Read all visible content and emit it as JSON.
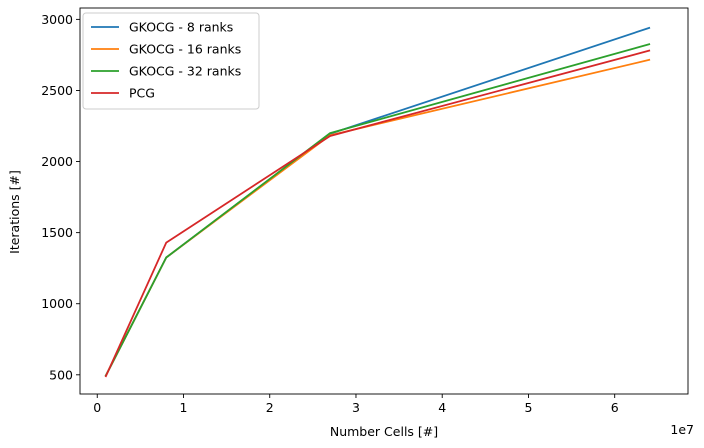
{
  "chart_data": {
    "type": "line",
    "xlabel": "Number Cells [#]",
    "ylabel": "Iterations [#]",
    "x_offset_label": "1e7",
    "xlim": [
      -0.2,
      6.85
    ],
    "ylim": [
      365,
      3080
    ],
    "x_ticks": [
      0,
      1,
      2,
      3,
      4,
      5,
      6
    ],
    "y_ticks": [
      500,
      1000,
      1500,
      2000,
      2500,
      3000
    ],
    "x": [
      0.1,
      0.8,
      2.7,
      6.4
    ],
    "legend_position": "upper left",
    "grid": false,
    "series": [
      {
        "name": "GKOCG - 8 ranks",
        "color": "#1f77b4",
        "values": [
          495,
          1325,
          2195,
          2940
        ]
      },
      {
        "name": "GKOCG - 16 ranks",
        "color": "#ff7f0e",
        "values": [
          495,
          1325,
          2185,
          2715
        ]
      },
      {
        "name": "GKOCG - 32 ranks",
        "color": "#2ca02c",
        "values": [
          495,
          1325,
          2200,
          2825
        ]
      },
      {
        "name": "PCG",
        "color": "#d62728",
        "values": [
          490,
          1430,
          2180,
          2780
        ]
      }
    ]
  }
}
